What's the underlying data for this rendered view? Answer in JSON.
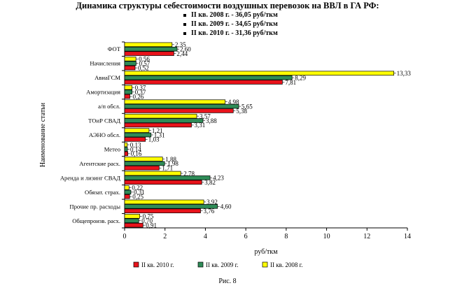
{
  "title": "Динамика структуры себестоимости воздушных перевозок на ВВЛ в ГА РФ:",
  "notes": [
    "II кв. 2008 г. - 36,05 руб/ткм",
    "II кв. 2009 г. - 34,65 руб/ткм",
    "II кв. 2010 г. - 31,36 руб/ткм"
  ],
  "caption": "Рис. 8",
  "chart_data": {
    "type": "bar",
    "orientation": "horizontal",
    "xlabel": "руб/ткм",
    "ylabel": "Наименование статьи",
    "xlim": [
      0,
      14
    ],
    "xticks": [
      0,
      2,
      4,
      6,
      8,
      10,
      12,
      14
    ],
    "legend_position": "bottom",
    "categories": [
      "ФОТ",
      "Начисления",
      "АвиаГСМ",
      "Амортизация",
      "а/п обсл.",
      "ТОиР СВАД",
      "АЭНО обсл.",
      "Метео",
      "Агентские расх.",
      "Аренда и лизинг СВАД",
      "Обязат. страх.",
      "Прочие пр. расходы",
      "Общепроизв. расх."
    ],
    "series": [
      {
        "name": "II кв. 2008 г.",
        "color": "#ffff00",
        "values": [
          2.35,
          0.56,
          13.33,
          0.37,
          4.98,
          3.57,
          1.21,
          0.13,
          1.88,
          2.78,
          0.22,
          3.92,
          0.75
        ],
        "labels": [
          "2,35",
          "0,56",
          "13,33",
          "0,37",
          "4,98",
          "3,57",
          "1,21",
          "0,13",
          "1,88",
          "2,78",
          "0,22",
          "3,92",
          "0,75"
        ]
      },
      {
        "name": "II кв. 2009 г.",
        "color": "#2e8b57",
        "values": [
          2.6,
          0.57,
          8.29,
          0.37,
          5.65,
          3.88,
          1.31,
          0.14,
          1.98,
          4.23,
          0.31,
          4.6,
          0.7
        ],
        "labels": [
          "2,60",
          "0,57",
          "8,29",
          "0,37",
          "5,65",
          "3,88",
          "1,31",
          "0,14",
          "1,98",
          "4,23",
          "0,31",
          "4,60",
          "0,70"
        ]
      },
      {
        "name": "II кв. 2010 г.",
        "color": "#e8131b",
        "values": [
          2.44,
          0.52,
          7.81,
          0.26,
          5.38,
          3.31,
          1.03,
          0.16,
          1.71,
          3.82,
          0.25,
          3.76,
          0.91
        ],
        "labels": [
          "2,44",
          "0,52",
          "7,81",
          "0,26",
          "5,38",
          "3,31",
          "1,03",
          "0,16",
          "1,71",
          "3,82",
          "0,25",
          "3,76",
          "0,91"
        ]
      }
    ],
    "legend_order": [
      "II кв. 2010 г.",
      "II кв. 2009 г.",
      "II кв. 2008 г."
    ]
  }
}
